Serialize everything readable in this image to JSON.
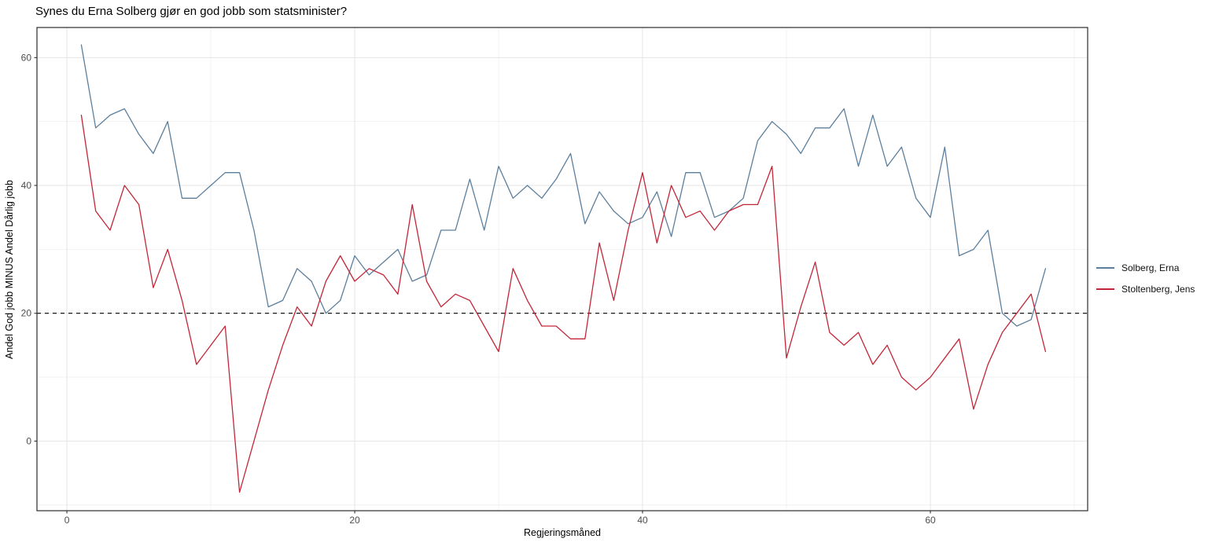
{
  "title": "Synes du Erna Solberg gjør en god jobb som statsminister?",
  "chart_data": {
    "type": "line",
    "title": "Synes du Erna Solberg gjør en god jobb som statsminister?",
    "xlabel": "Regjeringsmåned",
    "ylabel": "Andel God jobb MINUS Andel Dårlig jobb",
    "grid": true,
    "legend_position": "right-outside",
    "background": "#ffffff",
    "panel_border_color": "#2b2b2b",
    "grid_major_color": "#e4e4e4",
    "grid_minor_color": "#f1f1f1",
    "tick_label_color": "#4d4d4d",
    "reference_line_y": 20,
    "reference_line_style": "dashed-black",
    "xlim": [
      -2.08,
      70.93
    ],
    "ylim": [
      -10.89,
      64.71
    ],
    "x_ticks": [
      0,
      20,
      40,
      60
    ],
    "y_ticks": [
      0,
      20,
      40,
      60
    ],
    "x_minor_ticks": [
      10,
      30,
      50,
      70
    ],
    "y_minor_ticks": [
      -10,
      10,
      30,
      50
    ],
    "x": [
      1,
      2,
      3,
      4,
      5,
      6,
      7,
      8,
      9,
      10,
      11,
      12,
      13,
      14,
      15,
      16,
      17,
      18,
      19,
      20,
      21,
      22,
      23,
      24,
      25,
      26,
      27,
      28,
      29,
      30,
      31,
      32,
      33,
      34,
      35,
      36,
      37,
      38,
      39,
      40,
      41,
      42,
      43,
      44,
      45,
      46,
      47,
      48,
      49,
      50,
      51,
      52,
      53,
      54,
      55,
      56,
      57,
      58,
      59,
      60,
      61,
      62,
      63,
      64,
      65,
      66,
      67,
      68
    ],
    "series": [
      {
        "name": "Solberg, Erna",
        "color": "#5b7f9d",
        "values": [
          62,
          49,
          51,
          52,
          48,
          45,
          50,
          38,
          38,
          40,
          42,
          42,
          33,
          21,
          22,
          27,
          25,
          20,
          22,
          29,
          26,
          28,
          30,
          25,
          26,
          33,
          33,
          41,
          33,
          43,
          38,
          40,
          38,
          41,
          45,
          34,
          39,
          36,
          34,
          35,
          39,
          32,
          42,
          42,
          35,
          36,
          38,
          47,
          50,
          48,
          45,
          49,
          49,
          52,
          43,
          51,
          43,
          46,
          38,
          35,
          46,
          29,
          30,
          33,
          20,
          18,
          19,
          27
        ]
      },
      {
        "name": "Stoltenberg, Jens",
        "color": "#c32638",
        "values": [
          51,
          36,
          33,
          40,
          37,
          24,
          30,
          22,
          12,
          15,
          18,
          -8,
          0,
          8,
          15,
          21,
          18,
          25,
          29,
          25,
          27,
          26,
          23,
          37,
          25,
          21,
          23,
          22,
          18,
          14,
          27,
          22,
          18,
          18,
          16,
          16,
          31,
          22,
          33,
          42,
          31,
          40,
          35,
          36,
          33,
          36,
          37,
          37,
          43,
          13,
          21,
          28,
          17,
          15,
          17,
          12,
          15,
          10,
          8,
          10,
          13,
          16,
          5,
          12,
          17,
          20,
          23,
          14
        ]
      }
    ]
  }
}
